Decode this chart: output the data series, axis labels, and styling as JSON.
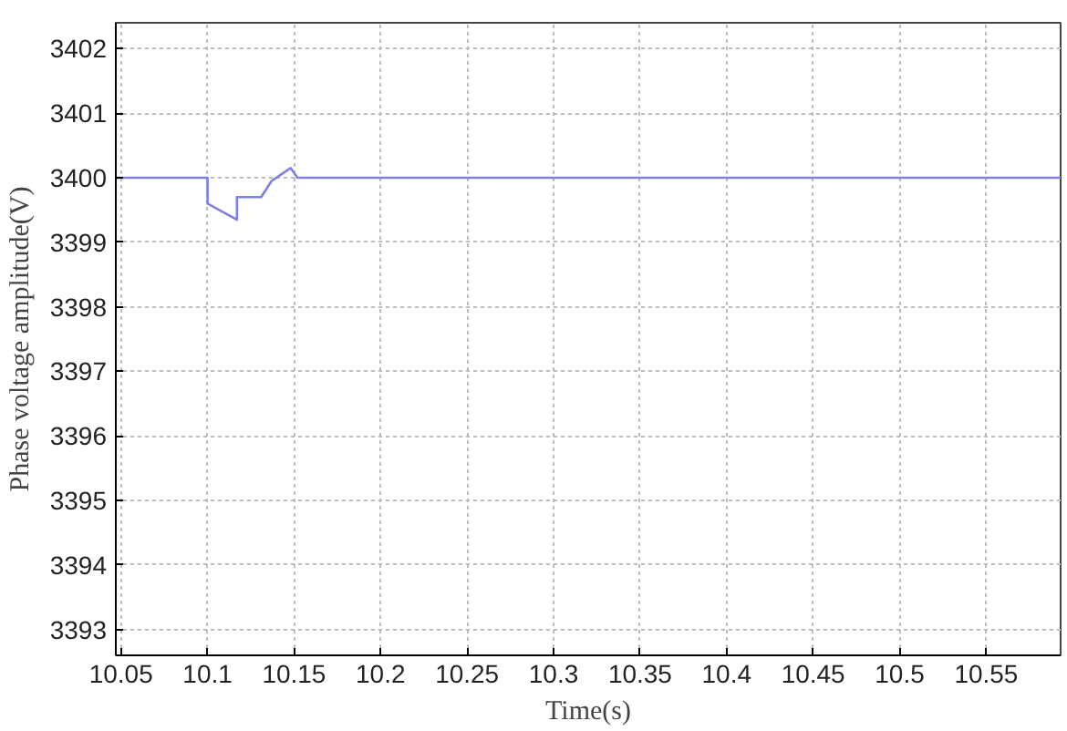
{
  "chart_data": {
    "type": "line",
    "xlabel": "Time(s)",
    "ylabel": "Phase voltage amplitude(V)",
    "x": [
      10.047,
      10.1,
      10.1,
      10.117,
      10.117,
      10.131,
      10.137,
      10.148,
      10.152,
      10.593
    ],
    "series": [
      {
        "color": "#7f7fe6",
        "values": [
          3400,
          3400,
          3399.6,
          3399.35,
          3399.7,
          3399.7,
          3399.95,
          3400.15,
          3400,
          3400
        ]
      }
    ],
    "xlim": [
      10.047,
      10.593
    ],
    "ylim": [
      3392.6,
      3402.4
    ],
    "xticks": [
      10.05,
      10.1,
      10.15,
      10.2,
      10.25,
      10.3,
      10.35,
      10.4,
      10.45,
      10.5,
      10.55
    ],
    "yticks": [
      3393,
      3394,
      3395,
      3396,
      3397,
      3398,
      3399,
      3400,
      3401,
      3402
    ],
    "grid": true,
    "line_style": "solid",
    "marker": "none"
  }
}
